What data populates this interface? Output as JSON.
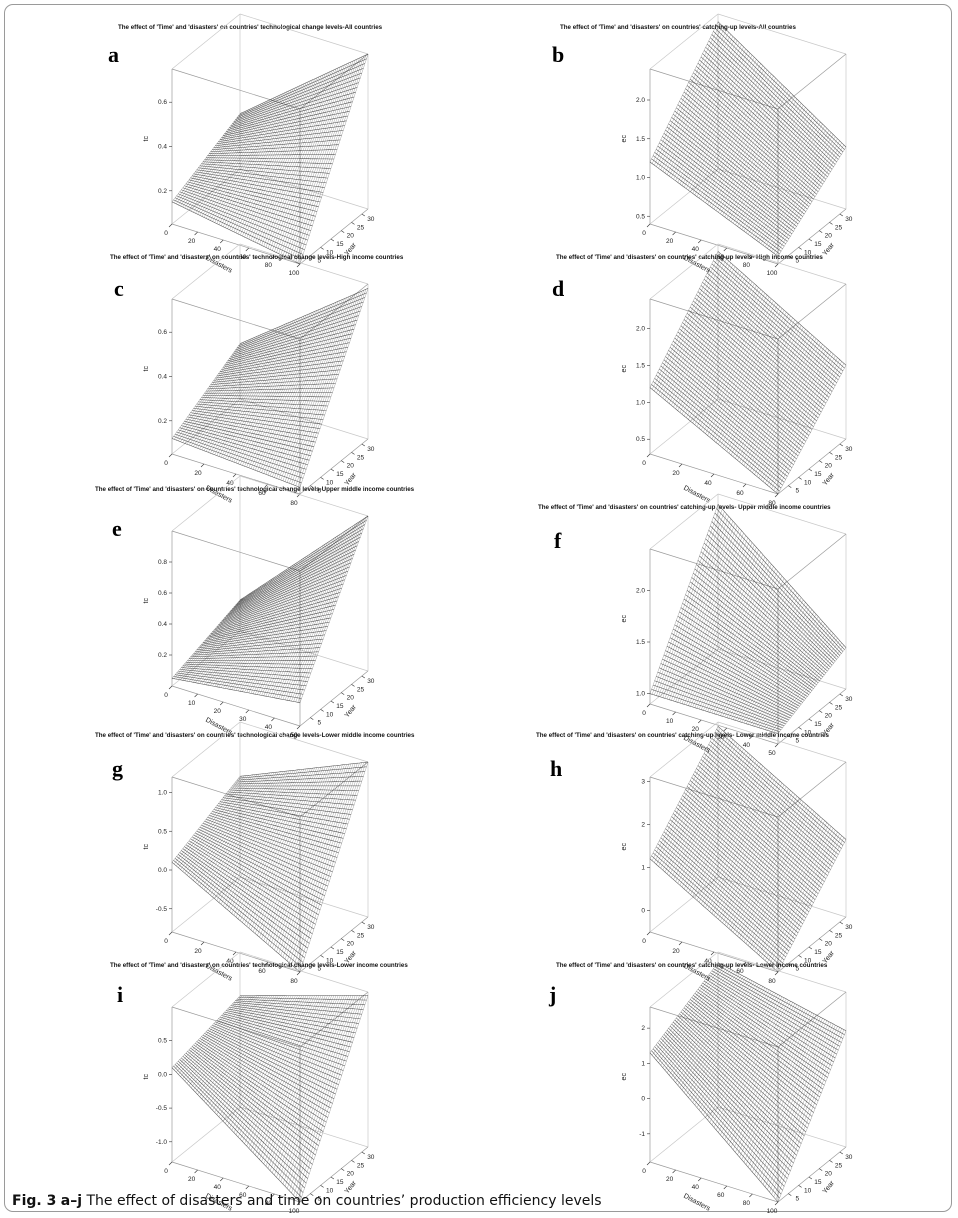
{
  "caption": {
    "figure_label": "Fig. 3",
    "panel_range": "a–j",
    "text": "The effect of disasters and time on countries’ production efficiency levels"
  },
  "chart_data": [
    {
      "type": "surface3d",
      "panel": "a",
      "title": "The effect of  'Time' and 'disasters' on countries' technological change levels-All countries",
      "xlabel": "Disasters",
      "ylabel": "Year",
      "zlabel": "tc",
      "xticks": [
        0,
        20,
        40,
        60,
        80,
        100
      ],
      "yticks": [
        5,
        10,
        15,
        20,
        25,
        30
      ],
      "zticks": [
        "0.2",
        "0.4",
        "0.6"
      ],
      "zlim": [
        0.05,
        0.75
      ],
      "corners": {
        "x0y0": 0.15,
        "x0y1": 0.3,
        "x1y0": 0.05,
        "x1y1": 0.75
      }
    },
    {
      "type": "surface3d",
      "panel": "b",
      "title": "The effect of  'Time' and 'disasters' on countries' catching-up levels-All countries",
      "xlabel": "Disasters",
      "ylabel": "Year",
      "zlabel": "ec",
      "xticks": [
        0,
        20,
        40,
        60,
        80,
        100
      ],
      "yticks": [
        5,
        10,
        15,
        20,
        25,
        30
      ],
      "zticks": [
        "0.5",
        "1.0",
        "1.5",
        "2.0"
      ],
      "zlim": [
        0.4,
        2.4
      ],
      "corners": {
        "x0y0": 1.2,
        "x0y1": 2.3,
        "x1y0": 0.5,
        "x1y1": 1.2
      }
    },
    {
      "type": "surface3d",
      "panel": "c",
      "title": "The effect of  'Time' and 'disasters' on countries' technological change levels-High income countries",
      "xlabel": "Disasters",
      "ylabel": "Year",
      "zlabel": "tc",
      "xticks": [
        0,
        20,
        40,
        60,
        80
      ],
      "yticks": [
        5,
        10,
        15,
        20,
        25,
        30
      ],
      "zticks": [
        "0.2",
        "0.4",
        "0.6"
      ],
      "zlim": [
        0.05,
        0.75
      ],
      "corners": {
        "x0y0": 0.12,
        "x0y1": 0.3,
        "x1y0": 0.08,
        "x1y1": 0.73
      }
    },
    {
      "type": "surface3d",
      "panel": "d",
      "title": "The effect of  'Time' and 'disasters' on countries' catching-up levels- High income countries",
      "xlabel": "Disasters",
      "ylabel": "Year",
      "zlabel": "ec",
      "xticks": [
        0,
        20,
        40,
        60,
        80
      ],
      "yticks": [
        5,
        10,
        15,
        20,
        25,
        30
      ],
      "zticks": [
        "0.5",
        "1.0",
        "1.5",
        "2.0"
      ],
      "zlim": [
        0.3,
        2.4
      ],
      "corners": {
        "x0y0": 1.2,
        "x0y1": 2.3,
        "x1y0": 0.3,
        "x1y1": 1.3
      }
    },
    {
      "type": "surface3d",
      "panel": "e",
      "title": "The effect of  'Time' and 'disasters' on countries' technological change levels-Upper middle income countries",
      "xlabel": "Disasters",
      "ylabel": "Year",
      "zlabel": "tc",
      "xticks": [
        0,
        10,
        20,
        30,
        40,
        50
      ],
      "yticks": [
        5,
        10,
        15,
        20,
        25,
        30
      ],
      "zticks": [
        "0.2",
        "0.4",
        "0.6",
        "0.8"
      ],
      "zlim": [
        0.0,
        1.0
      ],
      "corners": {
        "x0y0": 0.05,
        "x0y1": 0.2,
        "x1y0": 0.15,
        "x1y1": 1.0
      }
    },
    {
      "type": "surface3d",
      "panel": "f",
      "title": "The effect of  'Time' and 'disasters' on countries' catching-up levels- Upper middle income countries",
      "xlabel": "Disasters",
      "ylabel": "Year",
      "zlabel": "ec",
      "xticks": [
        0,
        10,
        20,
        30,
        40,
        50
      ],
      "yticks": [
        5,
        10,
        15,
        20,
        25,
        30
      ],
      "zticks": [
        "1.0",
        "1.5",
        "2.0"
      ],
      "zlim": [
        0.9,
        2.4
      ],
      "corners": {
        "x0y0": 1.0,
        "x0y1": 2.3,
        "x1y0": 1.0,
        "x1y1": 1.3
      }
    },
    {
      "type": "surface3d",
      "panel": "g",
      "title": "The effect of  'Time' and 'disasters' on countries' technological change levels-Lower middle income countries",
      "xlabel": "Disasters",
      "ylabel": "Year",
      "zlabel": "tc",
      "xticks": [
        0,
        20,
        40,
        60,
        80
      ],
      "yticks": [
        5,
        10,
        15,
        20,
        25,
        30
      ],
      "zticks": [
        "-0.5",
        "0.0",
        "0.5",
        "1.0"
      ],
      "zlim": [
        -0.8,
        1.2
      ],
      "corners": {
        "x0y0": 0.1,
        "x0y1": 0.5,
        "x1y0": -0.8,
        "x1y1": 1.2
      }
    },
    {
      "type": "surface3d",
      "panel": "h",
      "title": "The effect of  'Time' and 'disasters' on countries' catching-up levels- Lower middle income countries",
      "xlabel": "Disasters",
      "ylabel": "Year",
      "zlabel": "ec",
      "xticks": [
        0,
        20,
        40,
        60,
        80
      ],
      "yticks": [
        5,
        10,
        15,
        20,
        25,
        30
      ],
      "zticks": [
        "0",
        "1",
        "2",
        "3"
      ],
      "zlim": [
        -0.5,
        3.1
      ],
      "corners": {
        "x0y0": 1.2,
        "x0y1": 3.0,
        "x1y0": -0.5,
        "x1y1": 1.3
      }
    },
    {
      "type": "surface3d",
      "panel": "i",
      "title": "The effect of  'Time' and 'disasters' on countries' technological change levels-Lower income countries",
      "xlabel": "Disasters",
      "ylabel": "Year",
      "zlabel": "tc",
      "xticks": [
        0,
        20,
        40,
        60,
        80,
        100
      ],
      "yticks": [
        5,
        10,
        15,
        20,
        25,
        30
      ],
      "zticks": [
        "-1.0",
        "-0.5",
        "0.0",
        "0.5"
      ],
      "zlim": [
        -1.3,
        1.0
      ],
      "corners": {
        "x0y0": 0.1,
        "x0y1": 0.35,
        "x1y0": -1.3,
        "x1y1": 0.95
      }
    },
    {
      "type": "surface3d",
      "panel": "j",
      "title": "The effect of  'Time' and 'disasters' on countries' catching-up levels- Lower income countries",
      "xlabel": "Disasters",
      "ylabel": "Year",
      "zlabel": "ec",
      "xticks": [
        0,
        20,
        40,
        60,
        80,
        100
      ],
      "yticks": [
        5,
        10,
        15,
        20,
        25,
        30
      ],
      "zticks": [
        "-1",
        "0",
        "1",
        "2"
      ],
      "zlim": [
        -1.8,
        2.6
      ],
      "corners": {
        "x0y0": 1.3,
        "x0y1": 2.3,
        "x1y0": -1.8,
        "x1y1": 1.5
      }
    }
  ]
}
